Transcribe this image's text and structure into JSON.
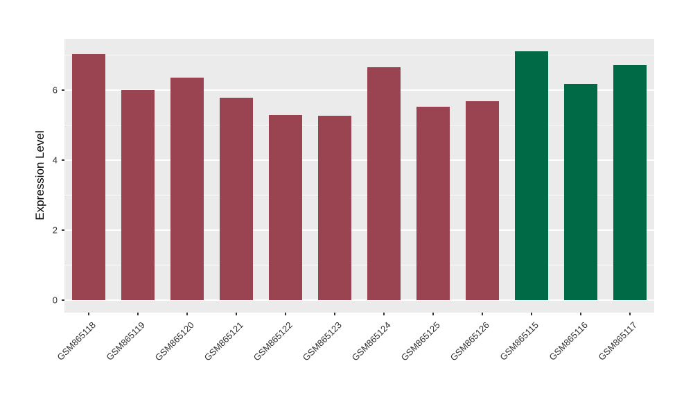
{
  "figure": {
    "background": "#FFFFFF",
    "panel_background": "#EBEBEB",
    "grid_color": "#FFFFFF",
    "axis_text_color": "#333333",
    "axis_title_color": "#000000"
  },
  "chart_data": {
    "type": "bar",
    "title": "",
    "xlabel": "",
    "ylabel": "Expression Level",
    "categories": [
      "GSM865118",
      "GSM865119",
      "GSM865120",
      "GSM865121",
      "GSM865122",
      "GSM865123",
      "GSM865124",
      "GSM865125",
      "GSM865126",
      "GSM865115",
      "GSM865116",
      "GSM865117"
    ],
    "values": [
      7.03,
      6.01,
      6.35,
      5.79,
      5.28,
      5.27,
      6.65,
      5.52,
      5.68,
      7.11,
      6.17,
      6.71
    ],
    "bar_colors": [
      "#9A4452",
      "#9A4452",
      "#9A4452",
      "#9A4452",
      "#9A4452",
      "#9A4452",
      "#9A4452",
      "#9A4452",
      "#9A4452",
      "#006A47",
      "#006A47",
      "#006A47"
    ],
    "color_legend": {
      "#9A4452": "dark red group (GSM865118-GSM865126)",
      "#006A47": "dark green group (GSM865115-GSM865117)"
    },
    "yticks": [
      0,
      2,
      4,
      6
    ],
    "yticks_minor": [
      1,
      3,
      5,
      7
    ],
    "ylim": [
      -0.36,
      7.47
    ],
    "grid": "on",
    "legend_position": "none"
  }
}
